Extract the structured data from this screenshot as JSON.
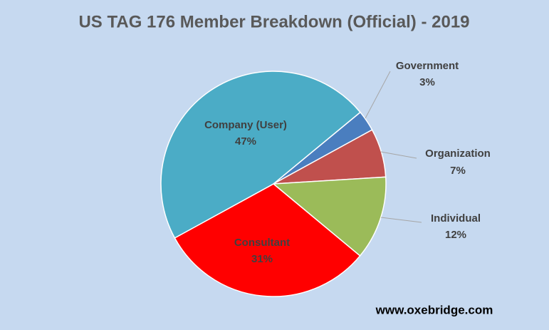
{
  "chart_data": {
    "type": "pie",
    "title": "US TAG 176 Member Breakdown (Official) - 2019",
    "categories": [
      "Government",
      "Organization",
      "Individual",
      "Consultant",
      "Company (User)"
    ],
    "values": [
      3,
      7,
      12,
      31,
      47
    ],
    "value_labels": [
      "3%",
      "7%",
      "12%",
      "31%",
      "47%"
    ],
    "colors": [
      "#4a7ebf",
      "#c0504d",
      "#9bbb59",
      "#ff0000",
      "#4bacc6"
    ],
    "watermark": "www.oxebridge.com"
  }
}
